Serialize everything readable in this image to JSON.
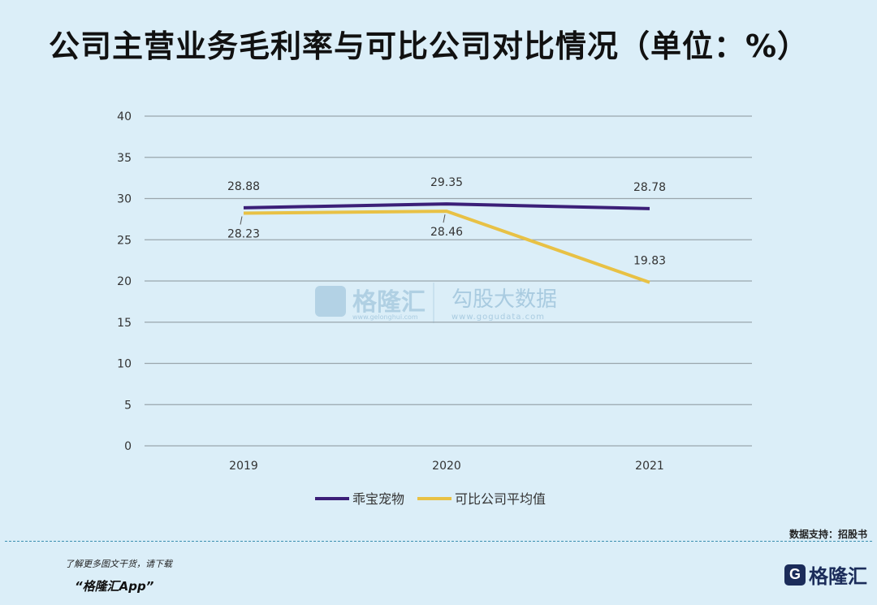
{
  "title": "公司主营业务毛利率与可比公司对比情况（单位：%）",
  "source": "数据支持：招股书",
  "footer": {
    "promo_line1": "了解更多图文干货，请下载",
    "promo_line2": "“格隆汇App”",
    "logo_text": "格隆汇",
    "logo_mark": "G"
  },
  "watermark": {
    "brand_left": "格隆汇",
    "brand_left_url": "www.gelonghui.com",
    "brand_right": "勾股大数据",
    "brand_right_url": "www.gogudata.com"
  },
  "chart_data": {
    "type": "line",
    "categories": [
      "2019",
      "2020",
      "2021"
    ],
    "series": [
      {
        "name": "乖宝宠物",
        "values": [
          28.88,
          29.35,
          28.78
        ],
        "labels": [
          "28.88",
          "29.35",
          "28.78"
        ],
        "color": "#3b1f78"
      },
      {
        "name": "可比公司平均值",
        "values": [
          28.23,
          28.46,
          19.83
        ],
        "labels": [
          "28.23",
          "28.46",
          "19.83"
        ],
        "color": "#e8c145"
      }
    ],
    "yticks": [
      "0",
      "5",
      "10",
      "15",
      "20",
      "25",
      "30",
      "35",
      "40"
    ],
    "ylim": [
      0,
      40
    ],
    "grid": true,
    "legend_position": "bottom"
  }
}
